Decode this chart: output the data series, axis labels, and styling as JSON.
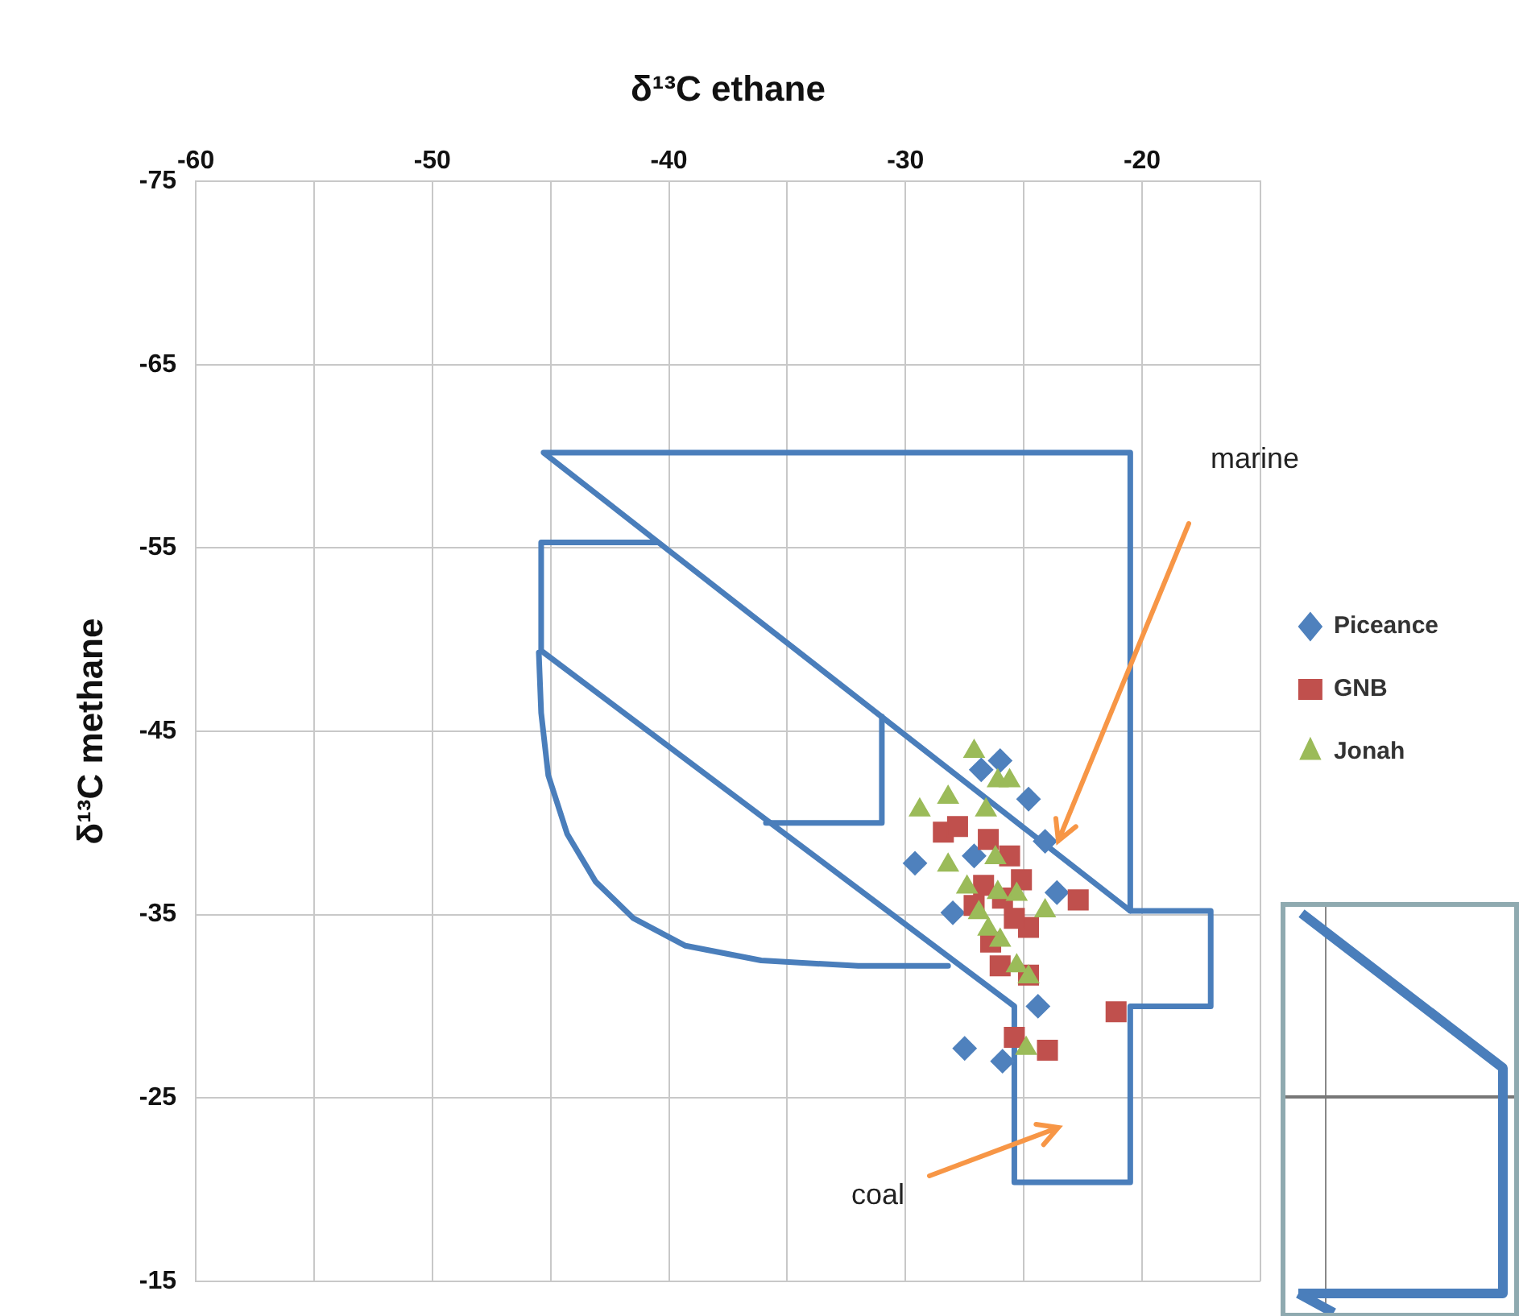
{
  "chart_data": {
    "type": "scatter",
    "xlabel": "δ¹³C ethane",
    "ylabel": "δ¹³C methane",
    "xlim": [
      -60,
      -15
    ],
    "xticks": [
      -60,
      {
        "value": -55,
        "label": null
      },
      -50,
      {
        "value": -45,
        "label": null
      },
      -40,
      {
        "value": -35,
        "label": null
      },
      -30,
      {
        "value": -25,
        "label": null
      },
      -20,
      {
        "value": -15,
        "label": null
      }
    ],
    "ylim": [
      -15,
      -75
    ],
    "yticks": [
      -75,
      -65,
      -55,
      -45,
      -35,
      -25,
      -15
    ],
    "grid": true,
    "legend": "right",
    "series": [
      {
        "name": "Piceance",
        "color": "#4f81bd",
        "marker": "diamond",
        "x": [
          -26.0,
          -26.8,
          -24.8,
          -24.1,
          -29.6,
          -23.6,
          -28.0,
          -24.4,
          -27.5,
          -25.9,
          -27.1
        ],
        "values": [
          -43.4,
          -42.9,
          -41.3,
          -39.0,
          -37.8,
          -36.2,
          -35.1,
          -30.0,
          -27.7,
          -27.0,
          -38.2
        ]
      },
      {
        "name": "GNB",
        "color": "#c0504d",
        "marker": "square",
        "x": [
          -28.4,
          -27.8,
          -26.5,
          -25.6,
          -25.1,
          -26.7,
          -25.9,
          -22.7,
          -24.8,
          -26.4,
          -26.0,
          -24.8,
          -21.1,
          -25.4,
          -24.0,
          -27.1,
          -25.4
        ],
        "values": [
          -39.5,
          -39.8,
          -39.1,
          -38.2,
          -36.9,
          -36.6,
          -35.9,
          -35.8,
          -34.3,
          -33.5,
          -32.2,
          -31.7,
          -29.7,
          -28.3,
          -27.6,
          -35.5,
          -34.8
        ]
      },
      {
        "name": "Jonah",
        "color": "#9bbb59",
        "marker": "triangle",
        "x": [
          -27.1,
          -26.1,
          -25.6,
          -28.2,
          -29.4,
          -26.6,
          -28.2,
          -26.2,
          -27.4,
          -26.1,
          -25.3,
          -24.1,
          -26.9,
          -26.5,
          -26.0,
          -25.3,
          -24.8,
          -24.9
        ],
        "values": [
          -43.9,
          -42.3,
          -42.3,
          -41.4,
          -40.7,
          -40.7,
          -37.7,
          -38.1,
          -36.5,
          -36.2,
          -36.1,
          -35.2,
          -35.1,
          -34.2,
          -33.6,
          -32.2,
          -31.6,
          -27.7
        ]
      },
      {
        "type": "line",
        "color": "#4a7ebb",
        "marker": "none",
        "x": [
          -40.5,
          -45.4,
          -45.4,
          -25.4,
          -25.4,
          -20.5,
          -20.5,
          -17.1,
          -17.1,
          -20.5,
          -20.5,
          -45.3,
          -20.5
        ],
        "values": [
          -55.3,
          -55.3,
          -49.4,
          -30.0,
          -20.4,
          -20.4,
          -30.0,
          -30.0,
          -35.2,
          -35.2,
          -60.2,
          -60.2,
          -35.2
        ]
      },
      {
        "type": "line",
        "color": "#4a7ebb",
        "marker": "none",
        "x": [
          -45.5,
          -45.4,
          -45.1,
          -44.3,
          -43.1,
          -41.5,
          -39.3,
          -36.1,
          -32.0,
          -28.2
        ],
        "values": [
          -49.3,
          -46.0,
          -42.6,
          -39.4,
          -36.8,
          -34.8,
          -33.3,
          -32.5,
          -32.2,
          -32.2
        ]
      },
      {
        "type": "line",
        "color": "#4a7ebb",
        "marker": "none",
        "x": [
          -31.0,
          -31.0,
          -35.9
        ],
        "values": [
          -45.8,
          -40.0,
          -40.0
        ]
      }
    ],
    "annotations": [
      "marine",
      "coal"
    ]
  }
}
